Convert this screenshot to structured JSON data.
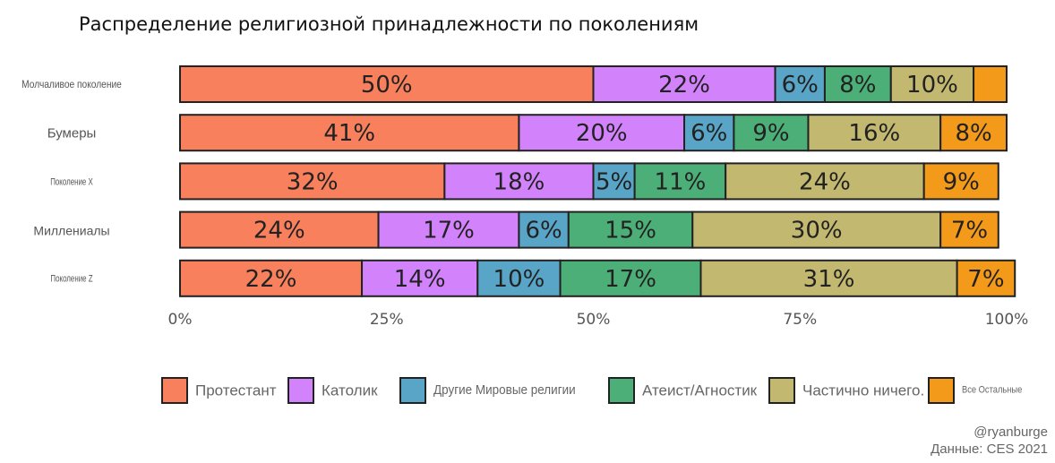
{
  "chart_data": {
    "type": "bar",
    "orientation": "horizontal",
    "stacked": true,
    "normalized_percent": true,
    "title": "Распределение религиозной принадлежности по поколениям",
    "categories": [
      "Молчаливое поколение",
      "Бумеры",
      "Поколение X",
      "Миллениалы",
      "Поколение Z"
    ],
    "series": [
      {
        "name": "Протестант",
        "color": "#F8805C",
        "values": [
          50,
          41,
          32,
          24,
          22
        ]
      },
      {
        "name": "Католик",
        "color": "#D282FB",
        "values": [
          22,
          20,
          18,
          17,
          14
        ]
      },
      {
        "name": "Другие Мировые религии",
        "color": "#59A5C7",
        "values": [
          6,
          6,
          5,
          6,
          10
        ]
      },
      {
        "name": "Атеист/Агностик",
        "color": "#4DAF78",
        "values": [
          8,
          9,
          11,
          15,
          17
        ]
      },
      {
        "name": "Частично ничего.",
        "color": "#C3B86F",
        "values": [
          10,
          16,
          24,
          30,
          31
        ]
      },
      {
        "name": "Все Остальные",
        "color": "#F39A1A",
        "values": [
          4,
          8,
          9,
          7,
          7
        ]
      }
    ],
    "xlim": [
      0,
      100
    ],
    "ticks": [
      "0%",
      "25%",
      "50%",
      "75%",
      "100%"
    ],
    "xlabel": "",
    "ylabel": "",
    "legend_position": "bottom",
    "credit": "@ryanburge",
    "source": "Данные: CES 2021"
  }
}
